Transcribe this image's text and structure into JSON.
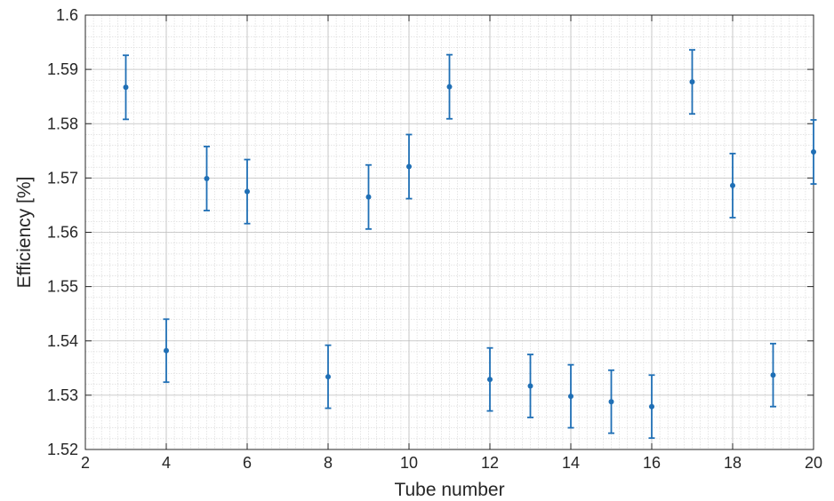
{
  "chart_data": {
    "type": "scatter",
    "title": "",
    "xlabel": "Tube number",
    "ylabel": "Efficiency [%]",
    "xlim": [
      2,
      20
    ],
    "ylim": [
      1.52,
      1.6
    ],
    "x_ticks": [
      2,
      4,
      6,
      8,
      10,
      12,
      14,
      16,
      18,
      20
    ],
    "y_ticks": [
      1.52,
      1.53,
      1.54,
      1.55,
      1.56,
      1.57,
      1.58,
      1.59,
      1.6
    ],
    "x_tick_labels": [
      "2",
      "4",
      "6",
      "8",
      "10",
      "12",
      "14",
      "16",
      "18",
      "20"
    ],
    "y_tick_labels": [
      "1.52",
      "1.53",
      "1.54",
      "1.55",
      "1.56",
      "1.57",
      "1.58",
      "1.59",
      "1.6"
    ],
    "grid": true,
    "minor_grid": true,
    "color": "#1f6fb5",
    "series": [
      {
        "x": [
          3,
          4,
          5,
          6,
          8,
          9,
          10,
          11,
          12,
          13,
          14,
          15,
          16,
          17,
          18,
          19,
          20
        ],
        "y": [
          1.5867,
          1.5382,
          1.5699,
          1.5675,
          1.5334,
          1.5665,
          1.5721,
          1.5868,
          1.5329,
          1.5317,
          1.5298,
          1.5288,
          1.5279,
          1.5877,
          1.5686,
          1.5337,
          1.5748
        ],
        "err": [
          0.0059,
          0.0058,
          0.0059,
          0.0059,
          0.0058,
          0.0059,
          0.0059,
          0.0059,
          0.0058,
          0.0058,
          0.0058,
          0.0058,
          0.0058,
          0.0059,
          0.0059,
          0.0058,
          0.0059
        ]
      }
    ]
  }
}
